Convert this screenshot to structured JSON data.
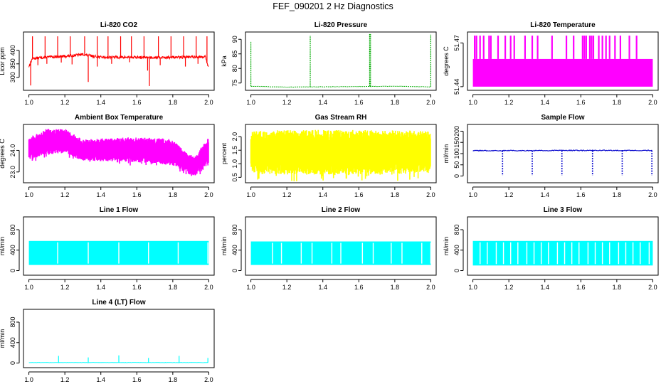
{
  "page_title": "FEF_090201  2 Hz Diagnostics",
  "chart_data": [
    {
      "id": "co2",
      "type": "line",
      "title": "Li-820 CO2",
      "xlabel": "",
      "ylabel": "Licor ppm",
      "color": "#ff0000",
      "xlim": [
        0.97,
        2.03
      ],
      "ylim": [
        252,
        468
      ],
      "x_ticks": [
        "1.0",
        "1.2",
        "1.4",
        "1.6",
        "1.8",
        "2.0"
      ],
      "y_ticks": [
        "300",
        "350",
        "400"
      ],
      "style": "noisy-spikes",
      "points": [
        [
          1.0,
          340
        ],
        [
          1.02,
          370
        ],
        [
          1.1,
          375
        ],
        [
          1.2,
          378
        ],
        [
          1.3,
          385
        ],
        [
          1.34,
          380
        ],
        [
          1.4,
          375
        ],
        [
          1.6,
          374
        ],
        [
          1.8,
          374
        ],
        [
          1.98,
          377
        ],
        [
          2.0,
          332
        ]
      ],
      "spikes_up": [
        1.02,
        1.09,
        1.16,
        1.23,
        1.31,
        1.38,
        1.44,
        1.51,
        1.57,
        1.64,
        1.72,
        1.79,
        1.86,
        1.93,
        1.99
      ],
      "spikes_down": [
        [
          1.01,
          270
        ],
        [
          1.05,
          345
        ],
        [
          1.1,
          350
        ],
        [
          1.18,
          355
        ],
        [
          1.24,
          348
        ],
        [
          1.33,
          283
        ],
        [
          1.38,
          340
        ],
        [
          1.46,
          350
        ],
        [
          1.56,
          356
        ],
        [
          1.66,
          325
        ],
        [
          1.67,
          268
        ],
        [
          1.73,
          345
        ],
        [
          1.87,
          340
        ],
        [
          1.94,
          350
        ]
      ],
      "spike_top": 452
    },
    {
      "id": "pressure",
      "type": "line",
      "title": "Li-820 Pressure",
      "xlabel": "",
      "ylabel": "kPa",
      "color": "#00aa00",
      "xlim": [
        0.97,
        2.03
      ],
      "ylim": [
        72.5,
        92.5
      ],
      "x_ticks": [
        "1.0",
        "1.2",
        "1.4",
        "1.6",
        "1.8",
        "2.0"
      ],
      "y_ticks": [
        "75",
        "80",
        "85",
        "90"
      ],
      "style": "flat-spikes",
      "points": [
        [
          1.0,
          73.9
        ],
        [
          1.2,
          73.6
        ],
        [
          1.4,
          73.7
        ],
        [
          1.6,
          73.8
        ],
        [
          1.8,
          73.9
        ],
        [
          2.0,
          73.7
        ]
      ],
      "spikes_up": [
        [
          1.0,
          89.3
        ],
        [
          1.33,
          91.3
        ],
        [
          1.66,
          91.8
        ],
        [
          1.665,
          91.8
        ],
        [
          2.0,
          91.6
        ]
      ],
      "spike_top": 91.5
    },
    {
      "id": "temperature",
      "type": "line",
      "title": "Li-820 Temperature",
      "xlabel": "",
      "ylabel": "degrees C",
      "color": "#ff00ff",
      "xlim": [
        0.97,
        2.03
      ],
      "ylim": [
        51.4375,
        51.4775
      ],
      "x_ticks": [
        "1.0",
        "1.2",
        "1.4",
        "1.6",
        "1.8",
        "2.0"
      ],
      "y_ticks": [
        "51.44",
        "51.47"
      ],
      "style": "band-spikes",
      "band": [
        51.44,
        51.459
      ],
      "spike_top": 51.475,
      "spikes_up": [
        1.01,
        1.02,
        1.04,
        1.06,
        1.09,
        1.1,
        1.14,
        1.18,
        1.21,
        1.23,
        1.29,
        1.33,
        1.36,
        1.44,
        1.52,
        1.56,
        1.61,
        1.62,
        1.63,
        1.65,
        1.66,
        1.67,
        1.7,
        1.72,
        1.74,
        1.76,
        1.79,
        1.82,
        1.87,
        1.91
      ]
    },
    {
      "id": "ambient",
      "type": "line",
      "title": "Ambient Box Temperature",
      "xlabel": "",
      "ylabel": "degrees C",
      "color": "#ff00ff",
      "xlim": [
        0.97,
        2.03
      ],
      "ylim": [
        22.5,
        25.2
      ],
      "x_ticks": [
        "1.0",
        "1.2",
        "1.4",
        "1.6",
        "1.8",
        "2.0"
      ],
      "y_ticks": [
        "23.0",
        "24.0"
      ],
      "style": "band",
      "upper": [
        [
          1.0,
          24.6
        ],
        [
          1.1,
          25.0
        ],
        [
          1.2,
          25.0
        ],
        [
          1.3,
          24.5
        ],
        [
          1.5,
          24.6
        ],
        [
          1.7,
          24.6
        ],
        [
          1.8,
          24.5
        ],
        [
          1.86,
          24.0
        ],
        [
          1.92,
          23.7
        ],
        [
          2.0,
          24.6
        ]
      ],
      "lower": [
        [
          1.0,
          23.6
        ],
        [
          1.1,
          23.8
        ],
        [
          1.2,
          23.9
        ],
        [
          1.3,
          23.5
        ],
        [
          1.5,
          23.5
        ],
        [
          1.7,
          23.4
        ],
        [
          1.8,
          23.3
        ],
        [
          1.86,
          23.0
        ],
        [
          1.92,
          22.8
        ],
        [
          2.0,
          23.4
        ]
      ]
    },
    {
      "id": "rh",
      "type": "line",
      "title": "Gas Stream RH",
      "xlabel": "",
      "ylabel": "percent",
      "color": "#ffff00",
      "xlim": [
        0.97,
        2.03
      ],
      "ylim": [
        0.3,
        2.45
      ],
      "x_ticks": [
        "1.0",
        "1.2",
        "1.4",
        "1.6",
        "1.8",
        "2.0"
      ],
      "y_ticks": [
        "0.5",
        "1.0",
        "1.5",
        "2.0"
      ],
      "style": "band",
      "upper": [
        [
          1.0,
          2.2
        ],
        [
          1.2,
          2.25
        ],
        [
          1.5,
          2.25
        ],
        [
          1.8,
          2.25
        ],
        [
          2.0,
          2.2
        ]
      ],
      "lower": [
        [
          1.0,
          0.65
        ],
        [
          1.2,
          0.6
        ],
        [
          1.5,
          0.58
        ],
        [
          1.8,
          0.6
        ],
        [
          2.0,
          0.65
        ]
      ]
    },
    {
      "id": "sample",
      "type": "line",
      "title": "Sample Flow",
      "xlabel": "",
      "ylabel": "ml/min",
      "color": "#0000cc",
      "xlim": [
        0.97,
        2.03
      ],
      "ylim": [
        -30,
        230
      ],
      "x_ticks": [
        "1.0",
        "1.2",
        "1.4",
        "1.6",
        "1.8",
        "2.0"
      ],
      "y_ticks": [
        "0",
        "50",
        "100",
        "150",
        "200"
      ],
      "style": "flat-dips",
      "points": [
        [
          1.0,
          113
        ],
        [
          1.5,
          114
        ],
        [
          2.0,
          114
        ]
      ],
      "dips": [
        1.165,
        1.33,
        1.495,
        1.665,
        1.83,
        1.995
      ],
      "dip_bottom": 2
    },
    {
      "id": "line1",
      "type": "line",
      "title": "Line 1 Flow",
      "xlabel": "",
      "ylabel": "ml/min",
      "color": "#00ffff",
      "xlim": [
        0.97,
        2.03
      ],
      "ylim": [
        -90,
        1050
      ],
      "x_ticks": [
        "1.0",
        "1.2",
        "1.4",
        "1.6",
        "1.8",
        "2.0"
      ],
      "y_ticks": [
        "0",
        "400",
        "800"
      ],
      "style": "band-gaps",
      "band": [
        110,
        580
      ],
      "gaps": [
        1.16,
        1.33,
        1.5,
        1.665,
        1.83,
        1.995
      ]
    },
    {
      "id": "line2",
      "type": "line",
      "title": "Line 2 Flow",
      "xlabel": "",
      "ylabel": "ml/min",
      "color": "#00ffff",
      "xlim": [
        0.97,
        2.03
      ],
      "ylim": [
        -90,
        1050
      ],
      "x_ticks": [
        "1.0",
        "1.2",
        "1.4",
        "1.6",
        "1.8",
        "2.0"
      ],
      "y_ticks": [
        "0",
        "400",
        "800"
      ],
      "style": "band-gaps",
      "band": [
        110,
        570
      ],
      "gaps": [
        1.12,
        1.17,
        1.28,
        1.34,
        1.45,
        1.5,
        1.62,
        1.68,
        1.78,
        1.84,
        1.95,
        2.0
      ]
    },
    {
      "id": "line3",
      "type": "line",
      "title": "Line 3 Flow",
      "xlabel": "",
      "ylabel": "ml/min",
      "color": "#00ffff",
      "xlim": [
        0.97,
        2.03
      ],
      "ylim": [
        -90,
        1050
      ],
      "x_ticks": [
        "1.0",
        "1.2",
        "1.4",
        "1.6",
        "1.8",
        "2.0"
      ],
      "y_ticks": [
        "0",
        "400",
        "800"
      ],
      "style": "band-gaps",
      "band": [
        100,
        580
      ],
      "gaps": [
        1.04,
        1.08,
        1.13,
        1.17,
        1.21,
        1.25,
        1.3,
        1.34,
        1.38,
        1.42,
        1.47,
        1.51,
        1.55,
        1.59,
        1.64,
        1.68,
        1.72,
        1.76,
        1.81,
        1.85,
        1.89,
        1.93,
        1.98
      ]
    },
    {
      "id": "line4",
      "type": "line",
      "title": "Line 4 (LT) Flow",
      "xlabel": "",
      "ylabel": "ml/min",
      "color": "#00ffff",
      "xlim": [
        0.97,
        2.03
      ],
      "ylim": [
        -90,
        1050
      ],
      "x_ticks": [
        "1.0",
        "1.2",
        "1.4",
        "1.6",
        "1.8",
        "2.0"
      ],
      "y_ticks": [
        "0",
        "400",
        "800"
      ],
      "style": "flat-spikes",
      "points": [
        [
          1.0,
          10
        ],
        [
          2.0,
          10
        ]
      ],
      "spikes_up": [
        [
          1.165,
          140
        ],
        [
          1.33,
          110
        ],
        [
          1.5,
          150
        ],
        [
          1.665,
          100
        ],
        [
          1.835,
          140
        ],
        [
          1.995,
          100
        ]
      ]
    }
  ]
}
